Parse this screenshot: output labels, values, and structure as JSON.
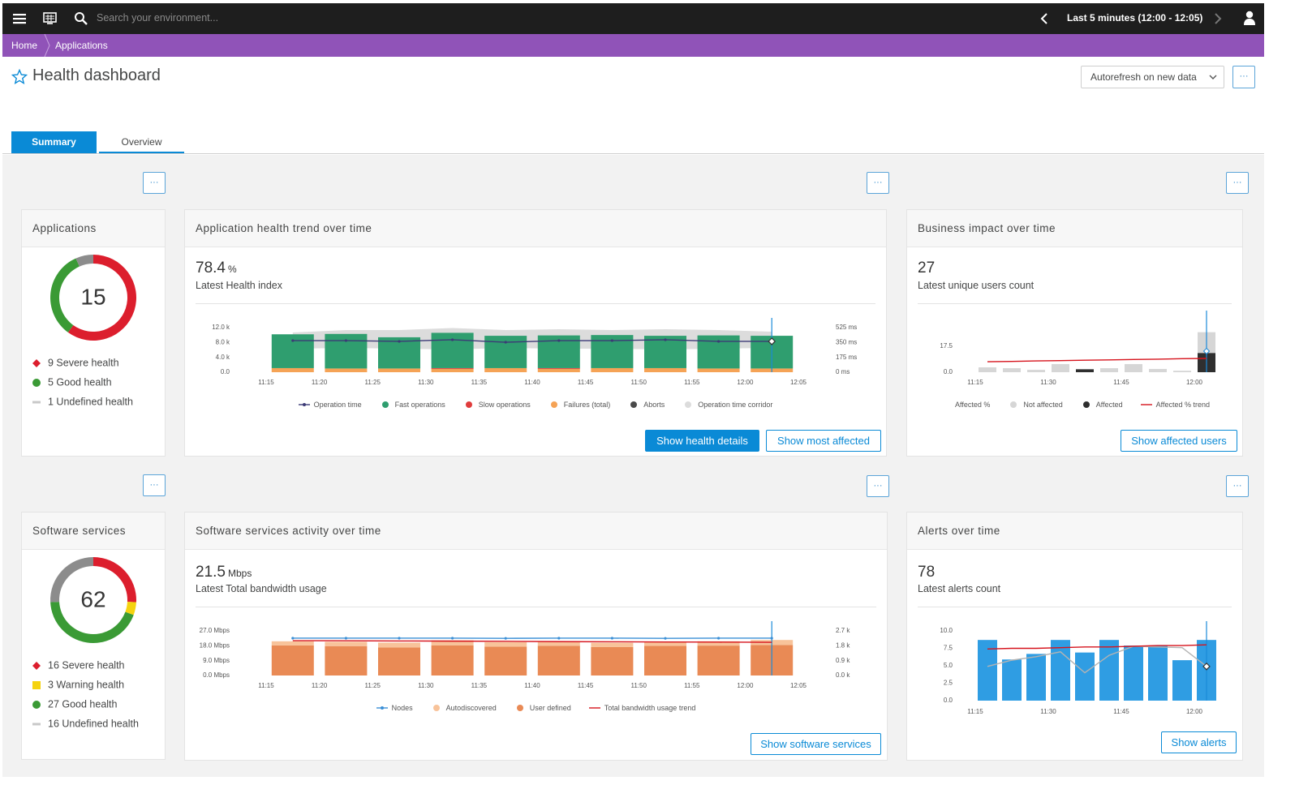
{
  "topbar": {
    "search_placeholder": "Search your environment...",
    "timeframe": "Last 5 minutes (12:00 - 12:05)"
  },
  "breadcrumb": [
    "Home",
    "Applications"
  ],
  "header": {
    "title": "Health dashboard",
    "autorefresh": "Autorefresh on new data",
    "more": "···"
  },
  "tabs": [
    "Summary",
    "Overview"
  ],
  "tiles": {
    "applications": {
      "title": "Applications",
      "total": 15,
      "segments": [
        {
          "label": "9 Severe health",
          "value": 9,
          "color": "#dc1e2d",
          "marker": "diamond"
        },
        {
          "label": "5 Good health",
          "value": 5,
          "color": "#3a9a35",
          "marker": "circle"
        },
        {
          "label": "1 Undefined health",
          "value": 1,
          "color": "#8c8c8c",
          "marker": "dash"
        }
      ]
    },
    "health_trend": {
      "title": "Application health trend over time",
      "value": 78.4,
      "unit": "%",
      "caption": "Latest Health index",
      "chart": {
        "type": "bar",
        "x_labels": [
          "11:15",
          "11:20",
          "11:25",
          "11:30",
          "11:35",
          "11:40",
          "11:45",
          "11:50",
          "11:55",
          "12:00",
          "12:05"
        ],
        "ylim": [
          0,
          12000
        ],
        "yticks": [
          {
            "value": 0,
            "label": "0.0"
          },
          {
            "value": 4000,
            "label": "4.0 k"
          },
          {
            "value": 8000,
            "label": "8.0 k"
          },
          {
            "value": 12000,
            "label": "12.0 k"
          }
        ],
        "y2lim": [
          0,
          525
        ],
        "y2ticks": [
          {
            "value": 0,
            "label": "0 ms"
          },
          {
            "value": 175,
            "label": "175 ms"
          },
          {
            "value": 350,
            "label": "350 ms"
          },
          {
            "value": 525,
            "label": "525 ms"
          }
        ],
        "series": [
          {
            "name": "Operation time",
            "kind": "line",
            "axis": "y2",
            "dots": true,
            "color": "#3c3a76",
            "values": [
              372,
              372,
              363,
              382,
              353,
              372,
              372,
              382,
              363,
              363
            ]
          },
          {
            "name": "Fast operations",
            "kind": "bar",
            "color": "#2f9e6f",
            "values": [
              9100,
              9300,
              8400,
              9500,
              8700,
              8800,
              8900,
              8700,
              8900,
              8800
            ]
          },
          {
            "name": "Slow operations",
            "kind": "bar",
            "color": "#e03c3c",
            "values": [
              0,
              0,
              0,
              200,
              0,
              200,
              0,
              0,
              0,
              0
            ]
          },
          {
            "name": "Failures (total)",
            "kind": "bar",
            "color": "#f5a356",
            "values": [
              1100,
              1000,
              1000,
              900,
              1100,
              900,
              1100,
              1100,
              1000,
              1000
            ]
          },
          {
            "name": "Aborts",
            "kind": "bar",
            "color": "#4a4a4a",
            "values": [
              0,
              0,
              0,
              0,
              0,
              0,
              0,
              0,
              0,
              0
            ]
          },
          {
            "name": "Operation time corridor",
            "kind": "area",
            "axis": "y2",
            "color": "#dcdcdc",
            "values": [
              468,
              496,
              496,
              520,
              496,
              506,
              496,
              506,
              496,
              477
            ],
            "lower": [
              277,
              286,
              277,
              267,
              286,
              277,
              277,
              267,
              277,
              286
            ]
          }
        ]
      },
      "buttons": [
        "Show health details",
        "Show most affected"
      ]
    },
    "business_impact": {
      "title": "Business impact over time",
      "value": 27,
      "caption": "Latest unique users count",
      "chart": {
        "type": "bar",
        "x_labels": [
          "11:15",
          "11:30",
          "11:45",
          "12:00"
        ],
        "ylim": [
          0,
          35
        ],
        "yticks": [
          {
            "value": 0,
            "label": "0.0"
          },
          17.5
        ],
        "series": [
          {
            "name": "Affected %",
            "kind": "marker",
            "color": "#ffffff",
            "values": [
              null,
              null,
              null,
              null,
              null,
              null,
              null,
              null,
              null,
              14.2
            ]
          },
          {
            "name": "Not affected",
            "kind": "bar",
            "color": "#d6d6d6",
            "values": [
              3.3,
              2.7,
              1.6,
              5.5,
              0,
              2.7,
              5.5,
              2.2,
              1.0,
              14
            ]
          },
          {
            "name": "Affected",
            "kind": "bar",
            "color": "#2f2f2f",
            "values": [
              0,
              0,
              0,
              0,
              2,
              0,
              0,
              0,
              0,
              13
            ]
          },
          {
            "name": "Affected % trend",
            "kind": "line",
            "color": "#d6131c",
            "values": [
              7.1,
              7.3,
              7.6,
              7.8,
              8.1,
              8.3,
              8.6,
              8.8,
              9.1,
              9.3
            ]
          }
        ]
      },
      "buttons": [
        "Show affected users"
      ]
    },
    "software_services": {
      "title": "Software services",
      "total": 62,
      "segments": [
        {
          "label": "16 Severe health",
          "value": 16,
          "color": "#dc1e2d",
          "marker": "diamond"
        },
        {
          "label": "3 Warning health",
          "value": 3,
          "color": "#f5d30f",
          "marker": "square"
        },
        {
          "label": "27 Good health",
          "value": 27,
          "color": "#3a9a35",
          "marker": "circle"
        },
        {
          "label": "16 Undefined health",
          "value": 16,
          "color": "#8c8c8c",
          "marker": "dash"
        }
      ]
    },
    "services_activity": {
      "title": "Software services activity over time",
      "value": 21.5,
      "unit": "Mbps",
      "caption": "Latest Total bandwidth usage",
      "chart": {
        "type": "bar",
        "x_labels": [
          "11:15",
          "11:20",
          "11:25",
          "11:30",
          "11:35",
          "11:40",
          "11:45",
          "11:50",
          "11:55",
          "12:00",
          "12:05"
        ],
        "ylim": [
          0,
          27
        ],
        "yticks": [
          {
            "value": 0,
            "label": "0.0 Mbps"
          },
          {
            "value": 9,
            "label": "9.0 Mbps"
          },
          {
            "value": 18,
            "label": "18.0 Mbps"
          },
          {
            "value": 27,
            "label": "27.0 Mbps"
          }
        ],
        "y2lim": [
          0,
          2700
        ],
        "y2ticks": [
          {
            "value": 0,
            "label": "0.0 k"
          },
          {
            "value": 900,
            "label": "0.9 k"
          },
          {
            "value": 1800,
            "label": "1.8 k"
          },
          {
            "value": 2700,
            "label": "2.7 k"
          }
        ],
        "series": [
          {
            "name": "Nodes",
            "kind": "line",
            "axis": "y2",
            "dots": true,
            "color": "#3a8fd6",
            "values": [
              2260,
              2260,
              2260,
              2260,
              2250,
              2260,
              2260,
              2250,
              2260,
              2260
            ]
          },
          {
            "name": "Autodiscovered",
            "kind": "bar",
            "color": "#f8c39a",
            "values": [
              2.5,
              2.6,
              2.9,
              3.0,
              2.7,
              2.8,
              2.6,
              2.7,
              2.6,
              3.0
            ]
          },
          {
            "name": "User defined",
            "kind": "bar",
            "color": "#e98a55",
            "values": [
              18.2,
              17.8,
              17.0,
              18.3,
              17.5,
              18.0,
              17.2,
              17.9,
              18.1,
              18.5
            ]
          },
          {
            "name": "Total bandwidth usage trend",
            "kind": "line",
            "color": "#d6131c",
            "values": [
              21.1,
              21.0,
              20.9,
              20.8,
              20.7,
              20.5,
              20.4,
              20.3,
              20.2,
              20.1
            ]
          }
        ]
      },
      "buttons": [
        "Show software services"
      ]
    },
    "alerts": {
      "title": "Alerts over time",
      "value": 78,
      "caption": "Latest alerts count",
      "chart": {
        "type": "bar",
        "x_labels": [
          "11:15",
          "11:30",
          "11:45",
          "12:00"
        ],
        "ylim": [
          0,
          10
        ],
        "yticks": [
          {
            "value": 0,
            "label": "0.0"
          },
          2.5,
          {
            "value": 5,
            "label": "5.0"
          },
          7.5,
          {
            "value": 10,
            "label": "10.0"
          }
        ],
        "series": [
          {
            "kind": "bar",
            "color": "#2f9de3",
            "values": [
              8.7,
              5.9,
              6.7,
              8.7,
              6.9,
              8.7,
              7.9,
              7.9,
              5.8,
              8.7
            ]
          },
          {
            "kind": "line",
            "color": "#b3b3b3",
            "values": [
              4.9,
              5.8,
              6.3,
              7.0,
              4.0,
              6.5,
              7.8,
              7.7,
              7.6,
              4.9
            ]
          },
          {
            "kind": "line",
            "color": "#d6131c",
            "values": [
              7.4,
              7.5,
              7.5,
              7.6,
              7.7,
              7.7,
              7.8,
              7.9,
              7.9,
              8.0
            ]
          }
        ]
      },
      "buttons": [
        "Show alerts"
      ]
    }
  }
}
